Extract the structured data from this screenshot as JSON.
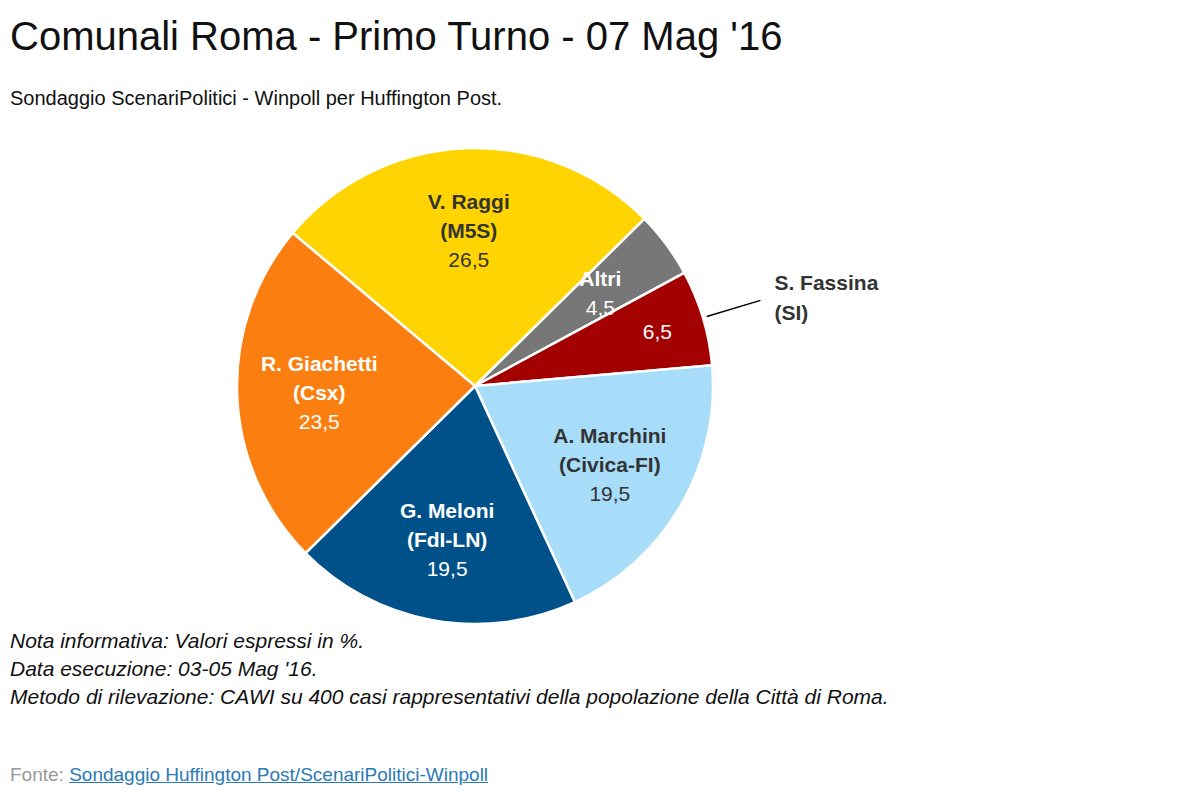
{
  "chart_data": {
    "type": "pie",
    "title": "Comunali Roma - Primo Turno - 07 Mag '16",
    "subtitle": "Sondaggio ScenariPolitici - Winpoll per Huffington Post.",
    "categories": [
      "V. Raggi (M5S)",
      "Altri",
      "S. Fassina (SI)",
      "A. Marchini (Civica-FI)",
      "G. Meloni (FdI-LN)",
      "R. Giachetti (Csx)"
    ],
    "values": [
      26.5,
      4.5,
      6.5,
      19.5,
      19.5,
      23.5
    ],
    "value_labels": [
      "26,5",
      "4,5",
      "6,5",
      "19,5",
      "19,5",
      "23,5"
    ],
    "colors": [
      "#ffd400",
      "#777777",
      "#a30000",
      "#a8ddf9",
      "#00508a",
      "#fb7f10"
    ],
    "data_labels": true,
    "notes": [
      "Nota informativa: Valori espressi in %.",
      "Data esecuzione: 03-05 Mag '16.",
      "Metodo di rilevazione: CAWI su 400 casi rappresentativi della popolazione della Città di Roma."
    ],
    "source_label": "Fonte:",
    "source": "Sondaggio Huffington Post/ScenariPolitici-Winpoll"
  }
}
